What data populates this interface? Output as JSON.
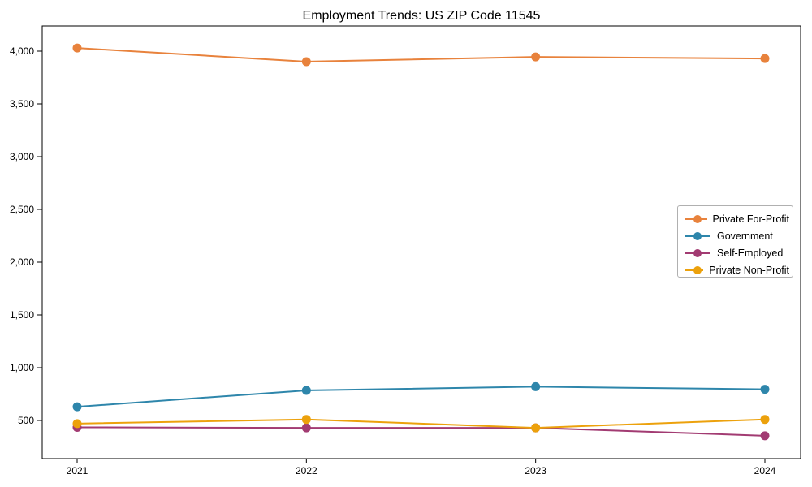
{
  "chart_data": {
    "type": "line",
    "title": "Employment Trends: US ZIP Code 11545",
    "xlabel": "",
    "ylabel": "",
    "categories": [
      "2021",
      "2022",
      "2023",
      "2024"
    ],
    "series": [
      {
        "name": "Private For-Profit",
        "color": "#E8823C",
        "values": [
          4030,
          3900,
          3945,
          3930
        ]
      },
      {
        "name": "Government",
        "color": "#2E86AB",
        "values": [
          630,
          785,
          820,
          795
        ]
      },
      {
        "name": "Self-Employed",
        "color": "#A23B72",
        "values": [
          435,
          430,
          430,
          355
        ]
      },
      {
        "name": "Private Non-Profit",
        "color": "#ECA10C",
        "values": [
          470,
          510,
          430,
          510
        ]
      }
    ],
    "yticks": [
      {
        "value": 500,
        "label": "500"
      },
      {
        "value": 1000,
        "label": "1,000"
      },
      {
        "value": 1500,
        "label": "1,500"
      },
      {
        "value": 2000,
        "label": "2,000"
      },
      {
        "value": 2500,
        "label": "2,500"
      },
      {
        "value": 3000,
        "label": "3,000"
      },
      {
        "value": 3500,
        "label": "3,500"
      },
      {
        "value": 4000,
        "label": "4,000"
      }
    ],
    "ylim": [
      139,
      4238
    ],
    "grid": false,
    "legend_position": "center right",
    "marker": "circle",
    "axis_color": "#000000"
  }
}
